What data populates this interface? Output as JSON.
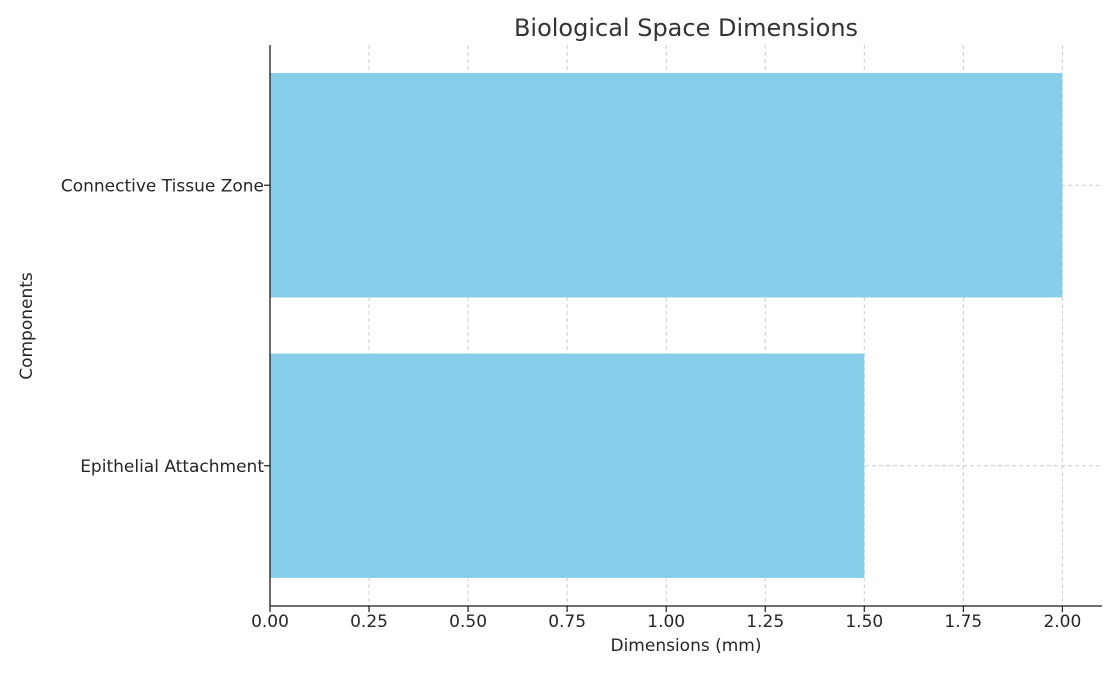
{
  "chart_data": {
    "type": "bar",
    "orientation": "horizontal",
    "title": "Biological Space Dimensions",
    "xlabel": "Dimensions (mm)",
    "ylabel": "Components",
    "categories": [
      "Connective Tissue Zone",
      "Epithelial Attachment"
    ],
    "values": [
      2.0,
      1.5
    ],
    "xlim": [
      0,
      2.1
    ],
    "xticks": [
      0.0,
      0.25,
      0.5,
      0.75,
      1.0,
      1.25,
      1.5,
      1.75,
      2.0
    ],
    "xtick_labels": [
      "0.00",
      "0.25",
      "0.50",
      "0.75",
      "1.00",
      "1.25",
      "1.50",
      "1.75",
      "2.00"
    ],
    "grid": true,
    "bar_color": "#87ceeb"
  }
}
